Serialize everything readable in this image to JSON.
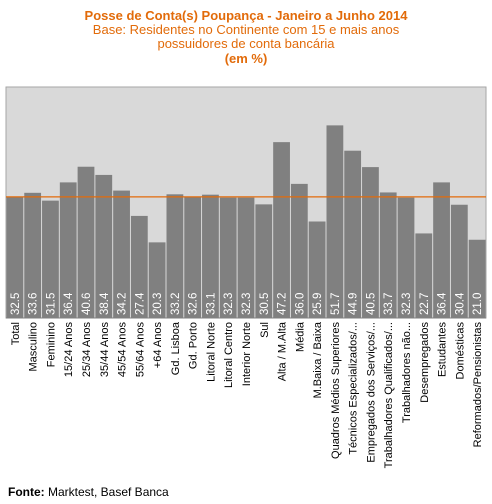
{
  "chart_data": {
    "type": "bar",
    "title": "Posse de Conta(s) Poupança - Janeiro a Junho 2014",
    "subtitle_line1": "Base: Residentes no Continente com 15 e mais anos",
    "subtitle_line2": "possuidores de conta bancária",
    "unit_label": "(em %)",
    "categories": [
      "Total",
      "Masculino",
      "Feminino",
      "15/24 Anos",
      "25/34 Anos",
      "35/44 Anos",
      "45/54 Anos",
      "55/64 Anos",
      "+64 Anos",
      "Gd. Lisboa",
      "Gd. Porto",
      "Litoral Norte",
      "Litoral Centro",
      "Interior Norte",
      "Sul",
      "Alta / M.Alta",
      "Média",
      "M.Baixa / Baixa",
      "Quadros Médios Superiores",
      "Técnicos Especializados/...",
      "Empregados dos Serviços/...",
      "Trabalhadores Qualificados/...",
      "Trabalhadores não...",
      "Desempregados",
      "Estudantes",
      "Domésticas",
      "Reformados/Pensionistas"
    ],
    "values": [
      32.5,
      33.6,
      31.5,
      36.4,
      40.6,
      38.4,
      34.2,
      27.4,
      20.3,
      33.2,
      32.6,
      33.1,
      32.3,
      32.3,
      30.5,
      47.2,
      36.0,
      25.9,
      51.7,
      44.9,
      40.5,
      33.7,
      32.3,
      22.7,
      36.4,
      30.4,
      21.0
    ],
    "value_labels": [
      "32.5",
      "33.6",
      "31.5",
      "36.4",
      "40.6",
      "38.4",
      "34.2",
      "27.4",
      "20.3",
      "33.2",
      "32.6",
      "33.1",
      "32.3",
      "32.3",
      "30.5",
      "47.2",
      "36.0",
      "25.9",
      "51.7",
      "44.9",
      "40.5",
      "33.7",
      "32.3",
      "22.7",
      "36.4",
      "30.4",
      "21.0"
    ],
    "reference_line": 32.5,
    "ylim": [
      0,
      62
    ],
    "grid": false,
    "xlabel": "",
    "ylabel": ""
  },
  "colors": {
    "bar": "#808080",
    "plot_background": "#d9d9d9",
    "reference_line": "#e26b0a",
    "title": "#e26b0a",
    "value_label": "#ffffff"
  },
  "footer": {
    "source_label": "Fonte:",
    "source_value": " Marktest, Basef Banca"
  }
}
